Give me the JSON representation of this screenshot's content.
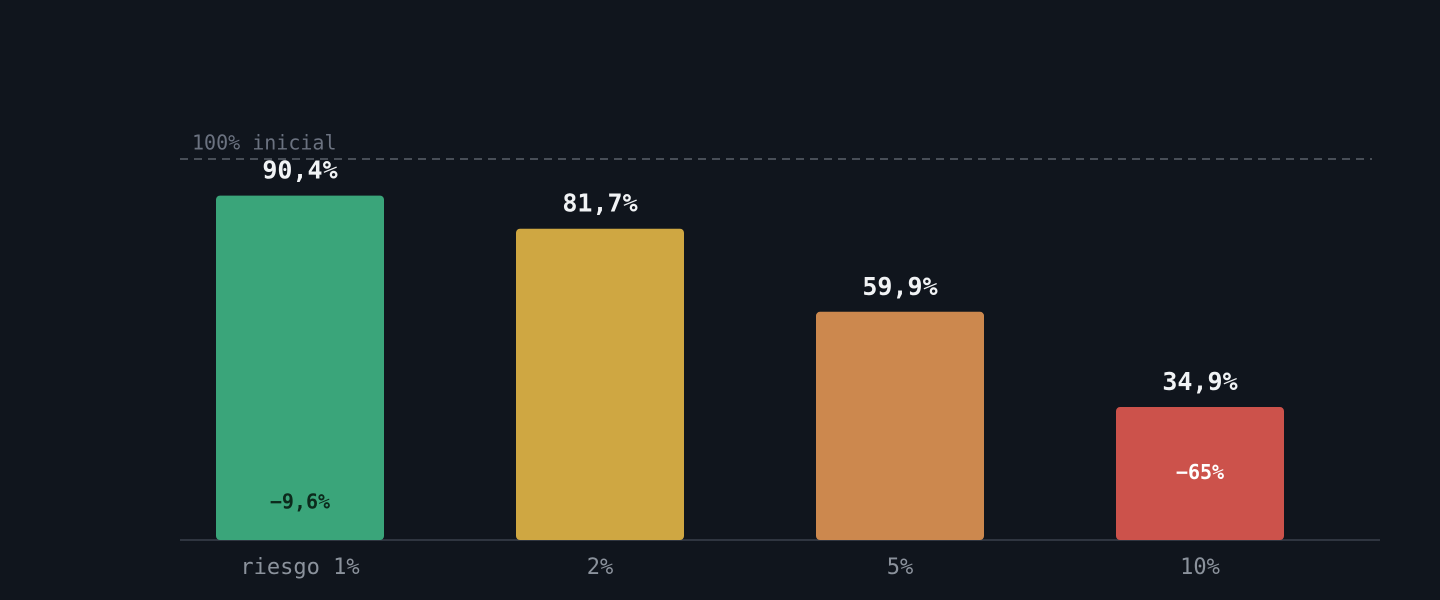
{
  "chart_data": {
    "type": "bar",
    "categories": [
      "riesgo 1%",
      "2%",
      "5%",
      "10%"
    ],
    "values": [
      90.4,
      81.7,
      59.9,
      34.9
    ],
    "value_labels": [
      "90,4%",
      "81,7%",
      "59,9%",
      "34,9%"
    ],
    "drop_labels": [
      "−9,6%",
      null,
      null,
      "−65%"
    ],
    "colors": [
      "#3aa57a",
      "#cfa742",
      "#cc884e",
      "#cc524b"
    ],
    "ylim": [
      0,
      100
    ],
    "reference": {
      "value": 100,
      "label": "100% inicial"
    }
  }
}
